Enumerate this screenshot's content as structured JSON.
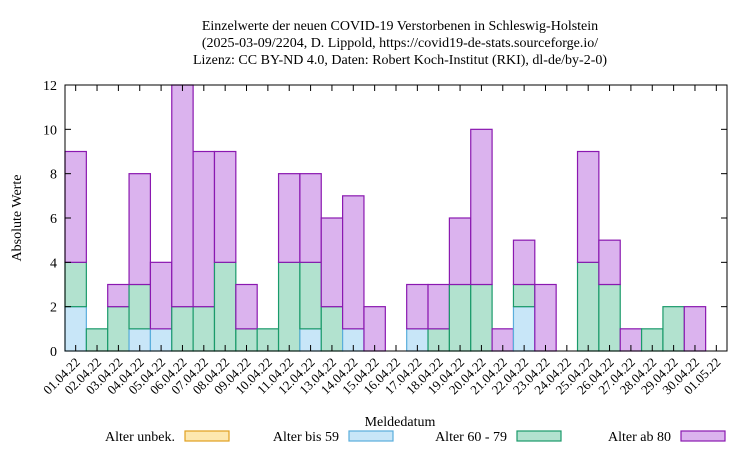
{
  "chart_data": {
    "type": "bar",
    "stacked": true,
    "title_lines": [
      "Einzelwerte der neuen COVID-19 Verstorbenen in Schleswig-Holstein",
      "(2025-03-09/2204, D. Lippold, https://covid19-de-stats.sourceforge.io/",
      "Lizenz: CC BY-ND 4.0, Daten: Robert Koch-Institut (RKI), dl-de/by-2-0)"
    ],
    "xlabel": "Meldedatum",
    "ylabel": "Absolute Werte",
    "ylim": [
      0,
      12
    ],
    "yticks": [
      0,
      2,
      4,
      6,
      8,
      10,
      12
    ],
    "grid": false,
    "legend_position": "bottom",
    "categories": [
      "01.04.22",
      "02.04.22",
      "03.04.22",
      "04.04.22",
      "05.04.22",
      "06.04.22",
      "07.04.22",
      "08.04.22",
      "09.04.22",
      "10.04.22",
      "11.04.22",
      "12.04.22",
      "13.04.22",
      "14.04.22",
      "15.04.22",
      "16.04.22",
      "17.04.22",
      "18.04.22",
      "19.04.22",
      "20.04.22",
      "21.04.22",
      "22.04.22",
      "23.04.22",
      "24.04.22",
      "25.04.22",
      "26.04.22",
      "27.04.22",
      "28.04.22",
      "29.04.22",
      "30.04.22",
      "01.05.22"
    ],
    "series": [
      {
        "name": "Alter unbek.",
        "fill": "#fde8b0",
        "stroke": "#e0a020",
        "values": [
          0,
          0,
          0,
          0,
          0,
          0,
          0,
          0,
          0,
          0,
          0,
          0,
          0,
          0,
          0,
          0,
          0,
          0,
          0,
          0,
          0,
          0,
          0,
          0,
          0,
          0,
          0,
          0,
          0,
          0,
          0
        ]
      },
      {
        "name": "Alter bis 59",
        "fill": "#c8e6f8",
        "stroke": "#5aaedc",
        "values": [
          2,
          0,
          0,
          1,
          1,
          0,
          0,
          0,
          0,
          0,
          0,
          1,
          0,
          1,
          0,
          0,
          1,
          0,
          0,
          0,
          0,
          2,
          0,
          0,
          0,
          0,
          0,
          0,
          0,
          0,
          0
        ]
      },
      {
        "name": "Alter 60 - 79",
        "fill": "#b2e2cf",
        "stroke": "#1a9a6a",
        "values": [
          2,
          1,
          2,
          2,
          0,
          2,
          2,
          4,
          1,
          1,
          4,
          3,
          2,
          0,
          0,
          0,
          0,
          1,
          3,
          3,
          0,
          1,
          0,
          0,
          4,
          3,
          0,
          1,
          2,
          0,
          0
        ]
      },
      {
        "name": "Alter ab 80",
        "fill": "#dbb3ee",
        "stroke": "#8a18b0",
        "values": [
          5,
          0,
          1,
          5,
          3,
          10,
          7,
          5,
          2,
          0,
          4,
          4,
          4,
          6,
          2,
          0,
          2,
          2,
          3,
          7,
          1,
          2,
          3,
          0,
          5,
          2,
          1,
          0,
          0,
          2,
          0
        ]
      }
    ]
  }
}
